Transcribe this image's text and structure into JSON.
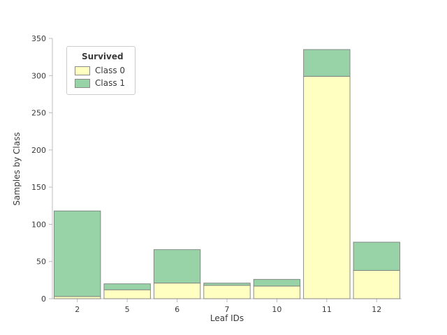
{
  "chart_data": {
    "type": "bar",
    "stacked": true,
    "title": "",
    "xlabel": "Leaf IDs",
    "ylabel": "Samples by Class",
    "categories": [
      "2",
      "5",
      "6",
      "7",
      "10",
      "11",
      "12"
    ],
    "series": [
      {
        "name": "Class 0",
        "color": "#FFFFC2",
        "values": [
          3,
          12,
          21,
          18,
          17,
          299,
          38
        ]
      },
      {
        "name": "Class 1",
        "color": "#97D3A7",
        "values": [
          115,
          8,
          45,
          3,
          9,
          36,
          38
        ]
      }
    ],
    "totals": [
      118,
      20,
      66,
      21,
      26,
      335,
      76
    ],
    "ylim": [
      0,
      350
    ],
    "ytick_step": 50,
    "yticks": [
      0,
      50,
      100,
      150,
      200,
      250,
      300,
      350
    ],
    "legend_title": "Survived",
    "legend_position": "upper left",
    "grid": false,
    "bar_edge_color": "#7f7f7f",
    "axis_color": "#bcbcbc",
    "tick_label_color": "#3a3a3a"
  }
}
